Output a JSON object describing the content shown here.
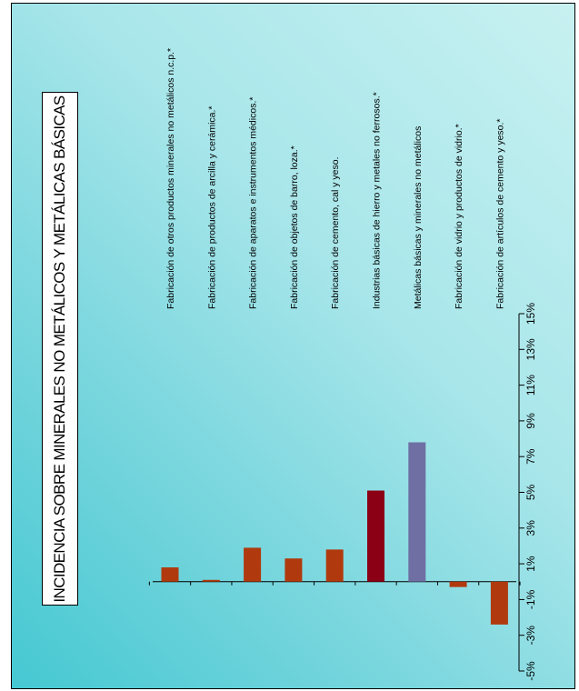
{
  "chart_data": {
    "type": "bar",
    "title": "INCIDENCIA SOBRE MINERALES NO METÁLICOS Y METÁLICAS BÁSICAS",
    "orientation": "rotated-90",
    "categories": [
      "Fabricación de otros productos minerales no metálicos n.c.p.*",
      "Fabricación de productos de arcilla y cerámica.*",
      "Fabricación de aparatos e instrumentos médicos.*",
      "Fabricación de objetos de barro, loza.*",
      "Fabricación de cemento, cal y yeso.",
      "Industrias básicas de hierro y metales no ferrosos.*",
      "Metálicas básicas y minerales no metálicos",
      "Fabricación de vidrio y productos de vidrio.*",
      "Fabricación de artículos de cemento y yeso.*"
    ],
    "values": [
      0.8,
      0.1,
      1.9,
      1.3,
      1.8,
      5.1,
      7.8,
      -0.3,
      -2.4
    ],
    "bar_colors": [
      "#b03a0e",
      "#b03a0e",
      "#b03a0e",
      "#b03a0e",
      "#b03a0e",
      "#8b0014",
      "#6f6fa3",
      "#b03a0e",
      "#b03a0e"
    ],
    "value_axis": {
      "min": -5,
      "max": 15,
      "ticks": [
        -5,
        -3,
        -1,
        1,
        3,
        5,
        7,
        9,
        11,
        13,
        15
      ],
      "tick_labels": [
        "-5%",
        "-3%",
        "-1%",
        "1%",
        "3%",
        "5%",
        "7%",
        "9%",
        "11%",
        "13%",
        "15%"
      ]
    },
    "grid": false,
    "legend": "none"
  },
  "colors": {
    "background_start": "#c8f1f1",
    "background_end": "#45c8d2",
    "bar_default": "#b03a0e",
    "bar_highlight": "#8b0014",
    "bar_total": "#6f6fa3"
  }
}
